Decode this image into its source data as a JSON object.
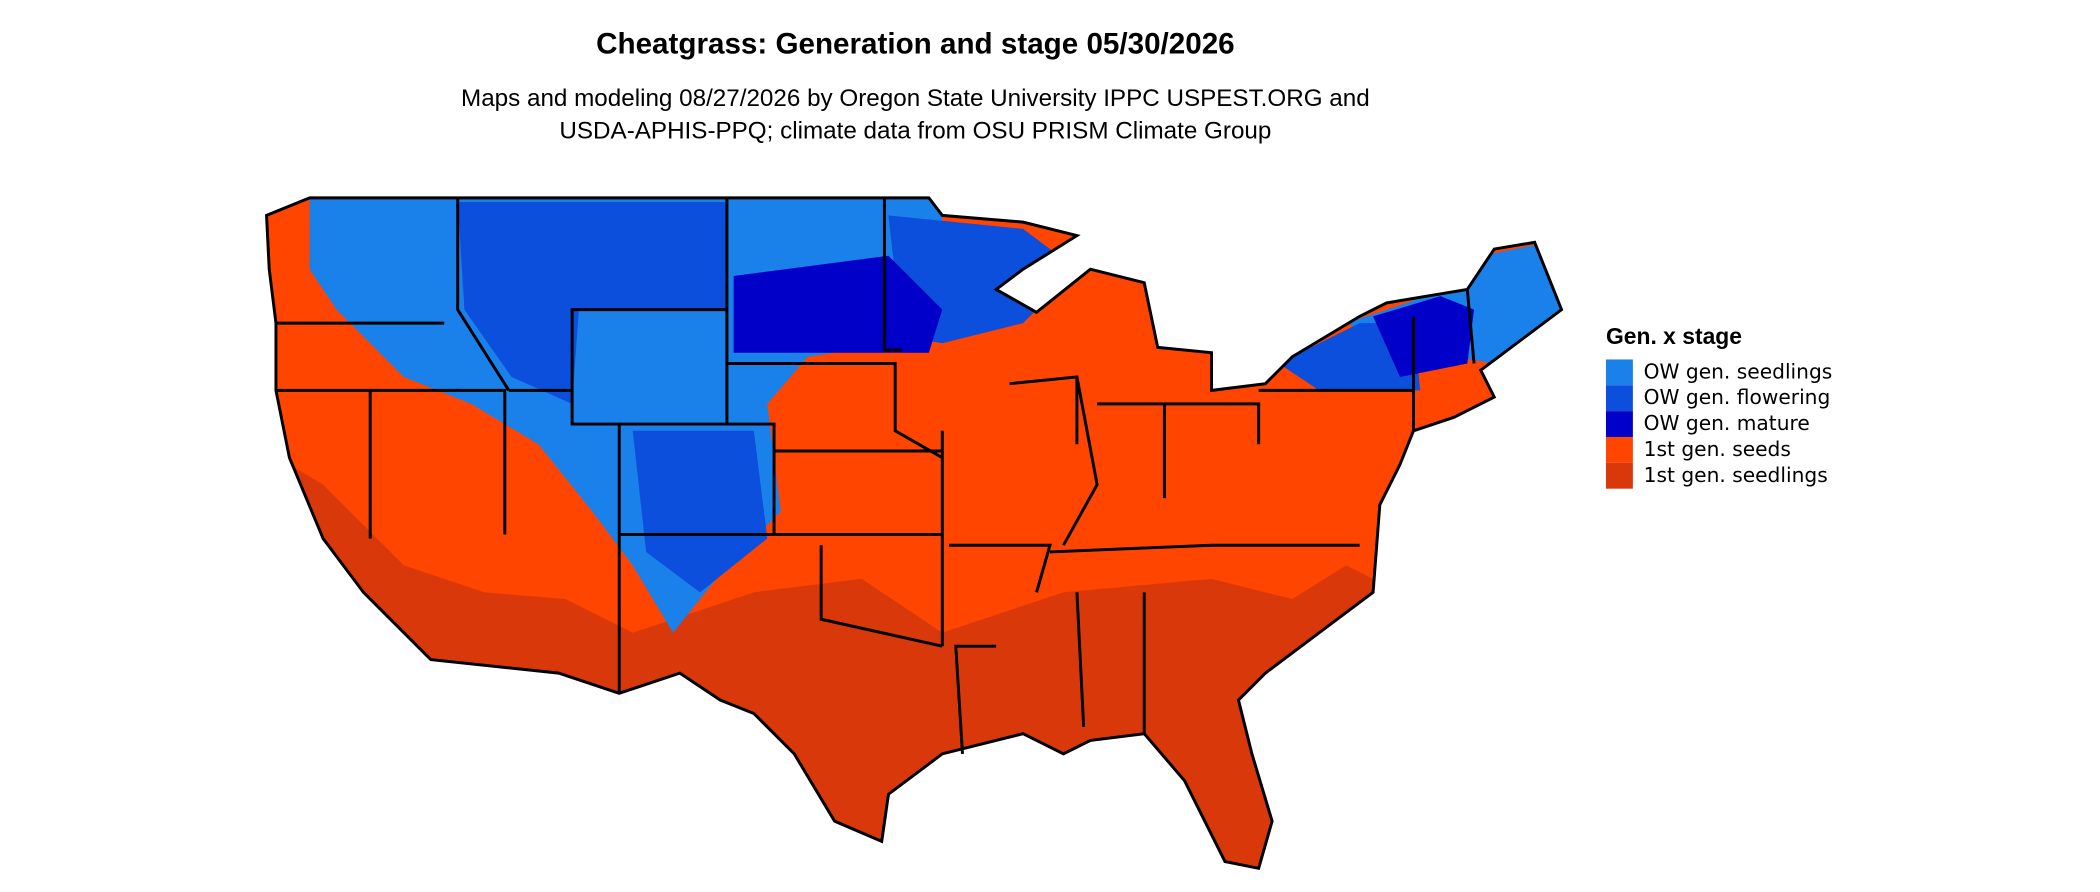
{
  "title": "Cheatgrass: Generation and stage 05/30/2026",
  "subtitle": [
    "Maps and modeling 08/27/2026 by Oregon State University IPPC USPEST.ORG and",
    "USDA-APHIS-PPQ; climate data from OSU PRISM Climate Group"
  ],
  "legend": {
    "title": "Gen. x stage",
    "items": [
      {
        "label": "OW gen. seedlings",
        "color": "#1a80ea"
      },
      {
        "label": "OW gen. flowering",
        "color": "#0c4fdc"
      },
      {
        "label": "OW gen. mature",
        "color": "#0000c8"
      },
      {
        "label": "1st gen. seeds",
        "color": "#ff4500"
      },
      {
        "label": "1st gen. seedlings",
        "color": "#d9380b"
      }
    ]
  }
}
